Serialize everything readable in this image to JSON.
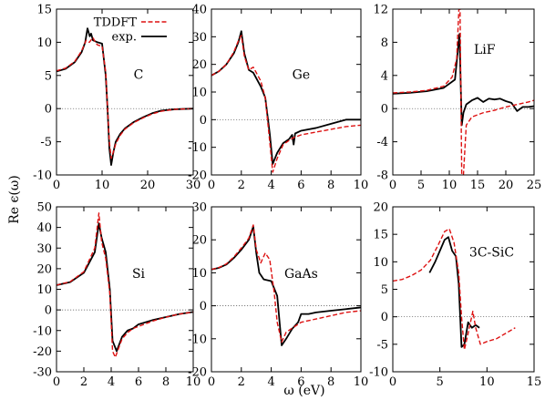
{
  "figure": {
    "ylabel": "Re ϵ(ω)",
    "xlabel": "ω (eV)",
    "legend": {
      "placement": "top of first panel",
      "entries": [
        {
          "label": "TDDFT",
          "color": "#dd1111",
          "style": "dashed"
        },
        {
          "label": "exp.",
          "color": "#000000",
          "style": "solid"
        }
      ]
    }
  },
  "chart_data": [
    {
      "type": "line",
      "label": "C",
      "xlim": [
        0,
        30
      ],
      "ylim": [
        -10,
        15
      ],
      "xticks": [
        0,
        10,
        20,
        30
      ],
      "yticks": [
        -10,
        -5,
        0,
        5,
        10,
        15
      ],
      "zero_line": true,
      "series": [
        {
          "name": "exp.",
          "color": "#000000",
          "dashed": false,
          "x": [
            0,
            2,
            4,
            5.5,
            6.3,
            6.8,
            7.3,
            7.6,
            8,
            9,
            10,
            10.8,
            11.2,
            11.6,
            12,
            12.5,
            13,
            14,
            15,
            17,
            19,
            21,
            23,
            26,
            30
          ],
          "y": [
            5.6,
            6.0,
            7.0,
            8.5,
            10.0,
            12.1,
            10.9,
            11.3,
            10.3,
            10.0,
            9.8,
            5.0,
            0.0,
            -6.0,
            -8.5,
            -6.5,
            -5.0,
            -3.8,
            -3.0,
            -2.0,
            -1.3,
            -0.7,
            -0.3,
            -0.1,
            0.0
          ]
        },
        {
          "name": "TDDFT",
          "color": "#dd1111",
          "dashed": true,
          "x": [
            0,
            2,
            4,
            5.5,
            6.5,
            7.2,
            8,
            8.5,
            9,
            10,
            10.8,
            11.2,
            11.6,
            12,
            12.5,
            13,
            14,
            15,
            17,
            19,
            21,
            23,
            26,
            30
          ],
          "y": [
            5.7,
            6.1,
            7.1,
            8.7,
            10.3,
            10.0,
            10.7,
            10.0,
            9.6,
            9.4,
            5.5,
            0.0,
            -5.0,
            -7.5,
            -6.5,
            -5.3,
            -4.0,
            -3.1,
            -2.1,
            -1.4,
            -0.8,
            -0.4,
            -0.1,
            0.0
          ]
        }
      ]
    },
    {
      "type": "line",
      "label": "Ge",
      "xlim": [
        0,
        10
      ],
      "ylim": [
        -20,
        40
      ],
      "xticks": [
        0,
        2,
        4,
        6,
        8,
        10
      ],
      "yticks": [
        -20,
        -10,
        0,
        10,
        20,
        30,
        40
      ],
      "zero_line": true,
      "series": [
        {
          "name": "exp.",
          "color": "#000000",
          "dashed": false,
          "x": [
            0,
            0.5,
            1,
            1.5,
            1.8,
            2.0,
            2.2,
            2.5,
            2.8,
            3.0,
            3.3,
            3.6,
            3.9,
            4.1,
            4.4,
            4.8,
            5.2,
            5.4,
            5.5,
            5.6,
            6,
            7,
            8,
            9,
            10
          ],
          "y": [
            16,
            17.5,
            20,
            24,
            28,
            32,
            24,
            18,
            17,
            15,
            12,
            8,
            -5,
            -16,
            -12,
            -8.5,
            -7,
            -5.5,
            -9,
            -5,
            -4,
            -3,
            -1.5,
            0,
            0
          ]
        },
        {
          "name": "TDDFT",
          "color": "#dd1111",
          "dashed": true,
          "x": [
            0,
            0.5,
            1,
            1.5,
            1.8,
            2.0,
            2.2,
            2.5,
            2.8,
            3.0,
            3.3,
            3.6,
            3.9,
            4.1,
            4.4,
            4.8,
            5.2,
            5.5,
            6,
            7,
            8,
            9,
            10
          ],
          "y": [
            16,
            17.5,
            20,
            24.5,
            28.5,
            30.5,
            23,
            18,
            19,
            17,
            14,
            8,
            -8,
            -19,
            -14,
            -9,
            -7.5,
            -6.5,
            -5.5,
            -4.5,
            -3.5,
            -2.5,
            -2
          ]
        }
      ]
    },
    {
      "type": "line",
      "label": "LiF",
      "xlim": [
        0,
        25
      ],
      "ylim": [
        -8,
        12
      ],
      "xticks": [
        0,
        5,
        10,
        15,
        20,
        25
      ],
      "yticks": [
        -8,
        -4,
        0,
        4,
        8,
        12
      ],
      "zero_line": true,
      "series": [
        {
          "name": "exp.",
          "color": "#000000",
          "dashed": false,
          "x": [
            0,
            3,
            6,
            9,
            11,
            11.8,
            12.2,
            12.5,
            13,
            14,
            15,
            16,
            17,
            18,
            19,
            20,
            21,
            22,
            23,
            24,
            25
          ],
          "y": [
            1.8,
            1.9,
            2.1,
            2.5,
            3.5,
            9.0,
            -2.0,
            -0.5,
            0.5,
            1.0,
            1.3,
            0.8,
            1.2,
            1.1,
            1.2,
            0.9,
            0.7,
            -0.3,
            0.2,
            0.2,
            0.3
          ]
        },
        {
          "name": "TDDFT",
          "color": "#dd1111",
          "dashed": true,
          "x": [
            0,
            3,
            6,
            9,
            10.5,
            11.3,
            11.7,
            11.9,
            12.2,
            12.5,
            13,
            14,
            16,
            18,
            20,
            22,
            24,
            25
          ],
          "y": [
            1.9,
            2.0,
            2.2,
            2.7,
            3.8,
            6.0,
            12.0,
            12.0,
            -8.0,
            -8.0,
            -2.0,
            -1.0,
            -0.5,
            -0.2,
            0.2,
            0.5,
            0.8,
            1.0
          ]
        }
      ]
    },
    {
      "type": "line",
      "label": "Si",
      "xlim": [
        0,
        10
      ],
      "ylim": [
        -30,
        50
      ],
      "xticks": [
        0,
        2,
        4,
        6,
        8,
        10
      ],
      "yticks": [
        -30,
        -20,
        -10,
        0,
        10,
        20,
        30,
        40,
        50
      ],
      "zero_line": true,
      "series": [
        {
          "name": "exp.",
          "color": "#000000",
          "dashed": false,
          "x": [
            0,
            1,
            2,
            2.8,
            3.1,
            3.3,
            3.6,
            3.9,
            4.1,
            4.4,
            4.8,
            5.2,
            5.6,
            6,
            7,
            8,
            9,
            10
          ],
          "y": [
            12,
            13.5,
            18,
            28,
            42,
            35,
            28,
            10,
            -15,
            -20,
            -13,
            -10,
            -9,
            -7,
            -5,
            -3.5,
            -2,
            -1
          ]
        },
        {
          "name": "TDDFT",
          "color": "#dd1111",
          "dashed": true,
          "x": [
            0,
            1,
            2,
            2.8,
            3.1,
            3.3,
            3.6,
            3.9,
            4.1,
            4.3,
            4.8,
            5.2,
            5.6,
            6,
            7,
            8,
            9,
            10
          ],
          "y": [
            12,
            13.7,
            18.5,
            30,
            47,
            33,
            25,
            8,
            -20,
            -23,
            -14,
            -11,
            -9,
            -8,
            -5.5,
            -3.5,
            -2,
            -1
          ]
        }
      ]
    },
    {
      "type": "line",
      "label": "GaAs",
      "xlim": [
        0,
        10
      ],
      "ylim": [
        -20,
        30
      ],
      "xticks": [
        0,
        2,
        4,
        6,
        8,
        10
      ],
      "yticks": [
        -20,
        -10,
        0,
        10,
        20,
        30
      ],
      "zero_line": true,
      "series": [
        {
          "name": "exp.",
          "color": "#000000",
          "dashed": false,
          "x": [
            0,
            0.5,
            1,
            1.5,
            2.0,
            2.5,
            2.8,
            3.0,
            3.2,
            3.5,
            4.0,
            4.4,
            4.7,
            5.0,
            5.4,
            5.8,
            6.0,
            6.5,
            7,
            8,
            9,
            10
          ],
          "y": [
            11,
            11.5,
            12.5,
            14.5,
            17,
            20,
            24,
            16,
            10,
            8,
            7.5,
            3,
            -12,
            -10,
            -7,
            -5,
            -2.5,
            -2.5,
            -2,
            -1.5,
            -1,
            -0.5
          ]
        },
        {
          "name": "TDDFT",
          "color": "#dd1111",
          "dashed": true,
          "x": [
            0,
            0.5,
            1,
            1.5,
            2.0,
            2.5,
            2.8,
            3.0,
            3.3,
            3.6,
            3.9,
            4.2,
            4.4,
            4.7,
            5.0,
            5.5,
            6,
            7,
            8,
            9,
            10
          ],
          "y": [
            11,
            11.6,
            12.7,
            14.8,
            17.5,
            20.5,
            24.5,
            17,
            13,
            16,
            14,
            4,
            -5,
            -11,
            -8,
            -6.5,
            -5,
            -4,
            -3,
            -2,
            -1.5
          ]
        }
      ]
    },
    {
      "type": "line",
      "label": "3C-SiC",
      "xlim": [
        0,
        15
      ],
      "ylim": [
        -10,
        20
      ],
      "xticks": [
        0,
        5,
        10,
        15
      ],
      "yticks": [
        -10,
        -5,
        0,
        5,
        10,
        15,
        20
      ],
      "zero_line": true,
      "series": [
        {
          "name": "exp.",
          "color": "#000000",
          "dashed": false,
          "x": [
            3.9,
            4.5,
            5,
            5.5,
            5.9,
            6.3,
            6.7,
            7.0,
            7.3,
            7.6,
            8.0,
            8.4,
            8.8,
            9.2
          ],
          "y": [
            8.0,
            10,
            12,
            14,
            14.5,
            12,
            11,
            6,
            -5.5,
            -5,
            -1,
            -2,
            -1.5,
            -2
          ]
        },
        {
          "name": "TDDFT",
          "color": "#dd1111",
          "dashed": true,
          "x": [
            0,
            1,
            2,
            3,
            4,
            4.8,
            5.5,
            6.0,
            6.5,
            7.0,
            7.3,
            7.6,
            8.0,
            8.5,
            8.8,
            9.3,
            10,
            11,
            12,
            13
          ],
          "y": [
            6.5,
            6.8,
            7.5,
            8.5,
            10.3,
            13,
            15.5,
            16,
            13.5,
            8,
            0,
            -6,
            -3,
            1,
            -2,
            -5,
            -4.5,
            -4,
            -3,
            -2
          ]
        }
      ]
    }
  ]
}
